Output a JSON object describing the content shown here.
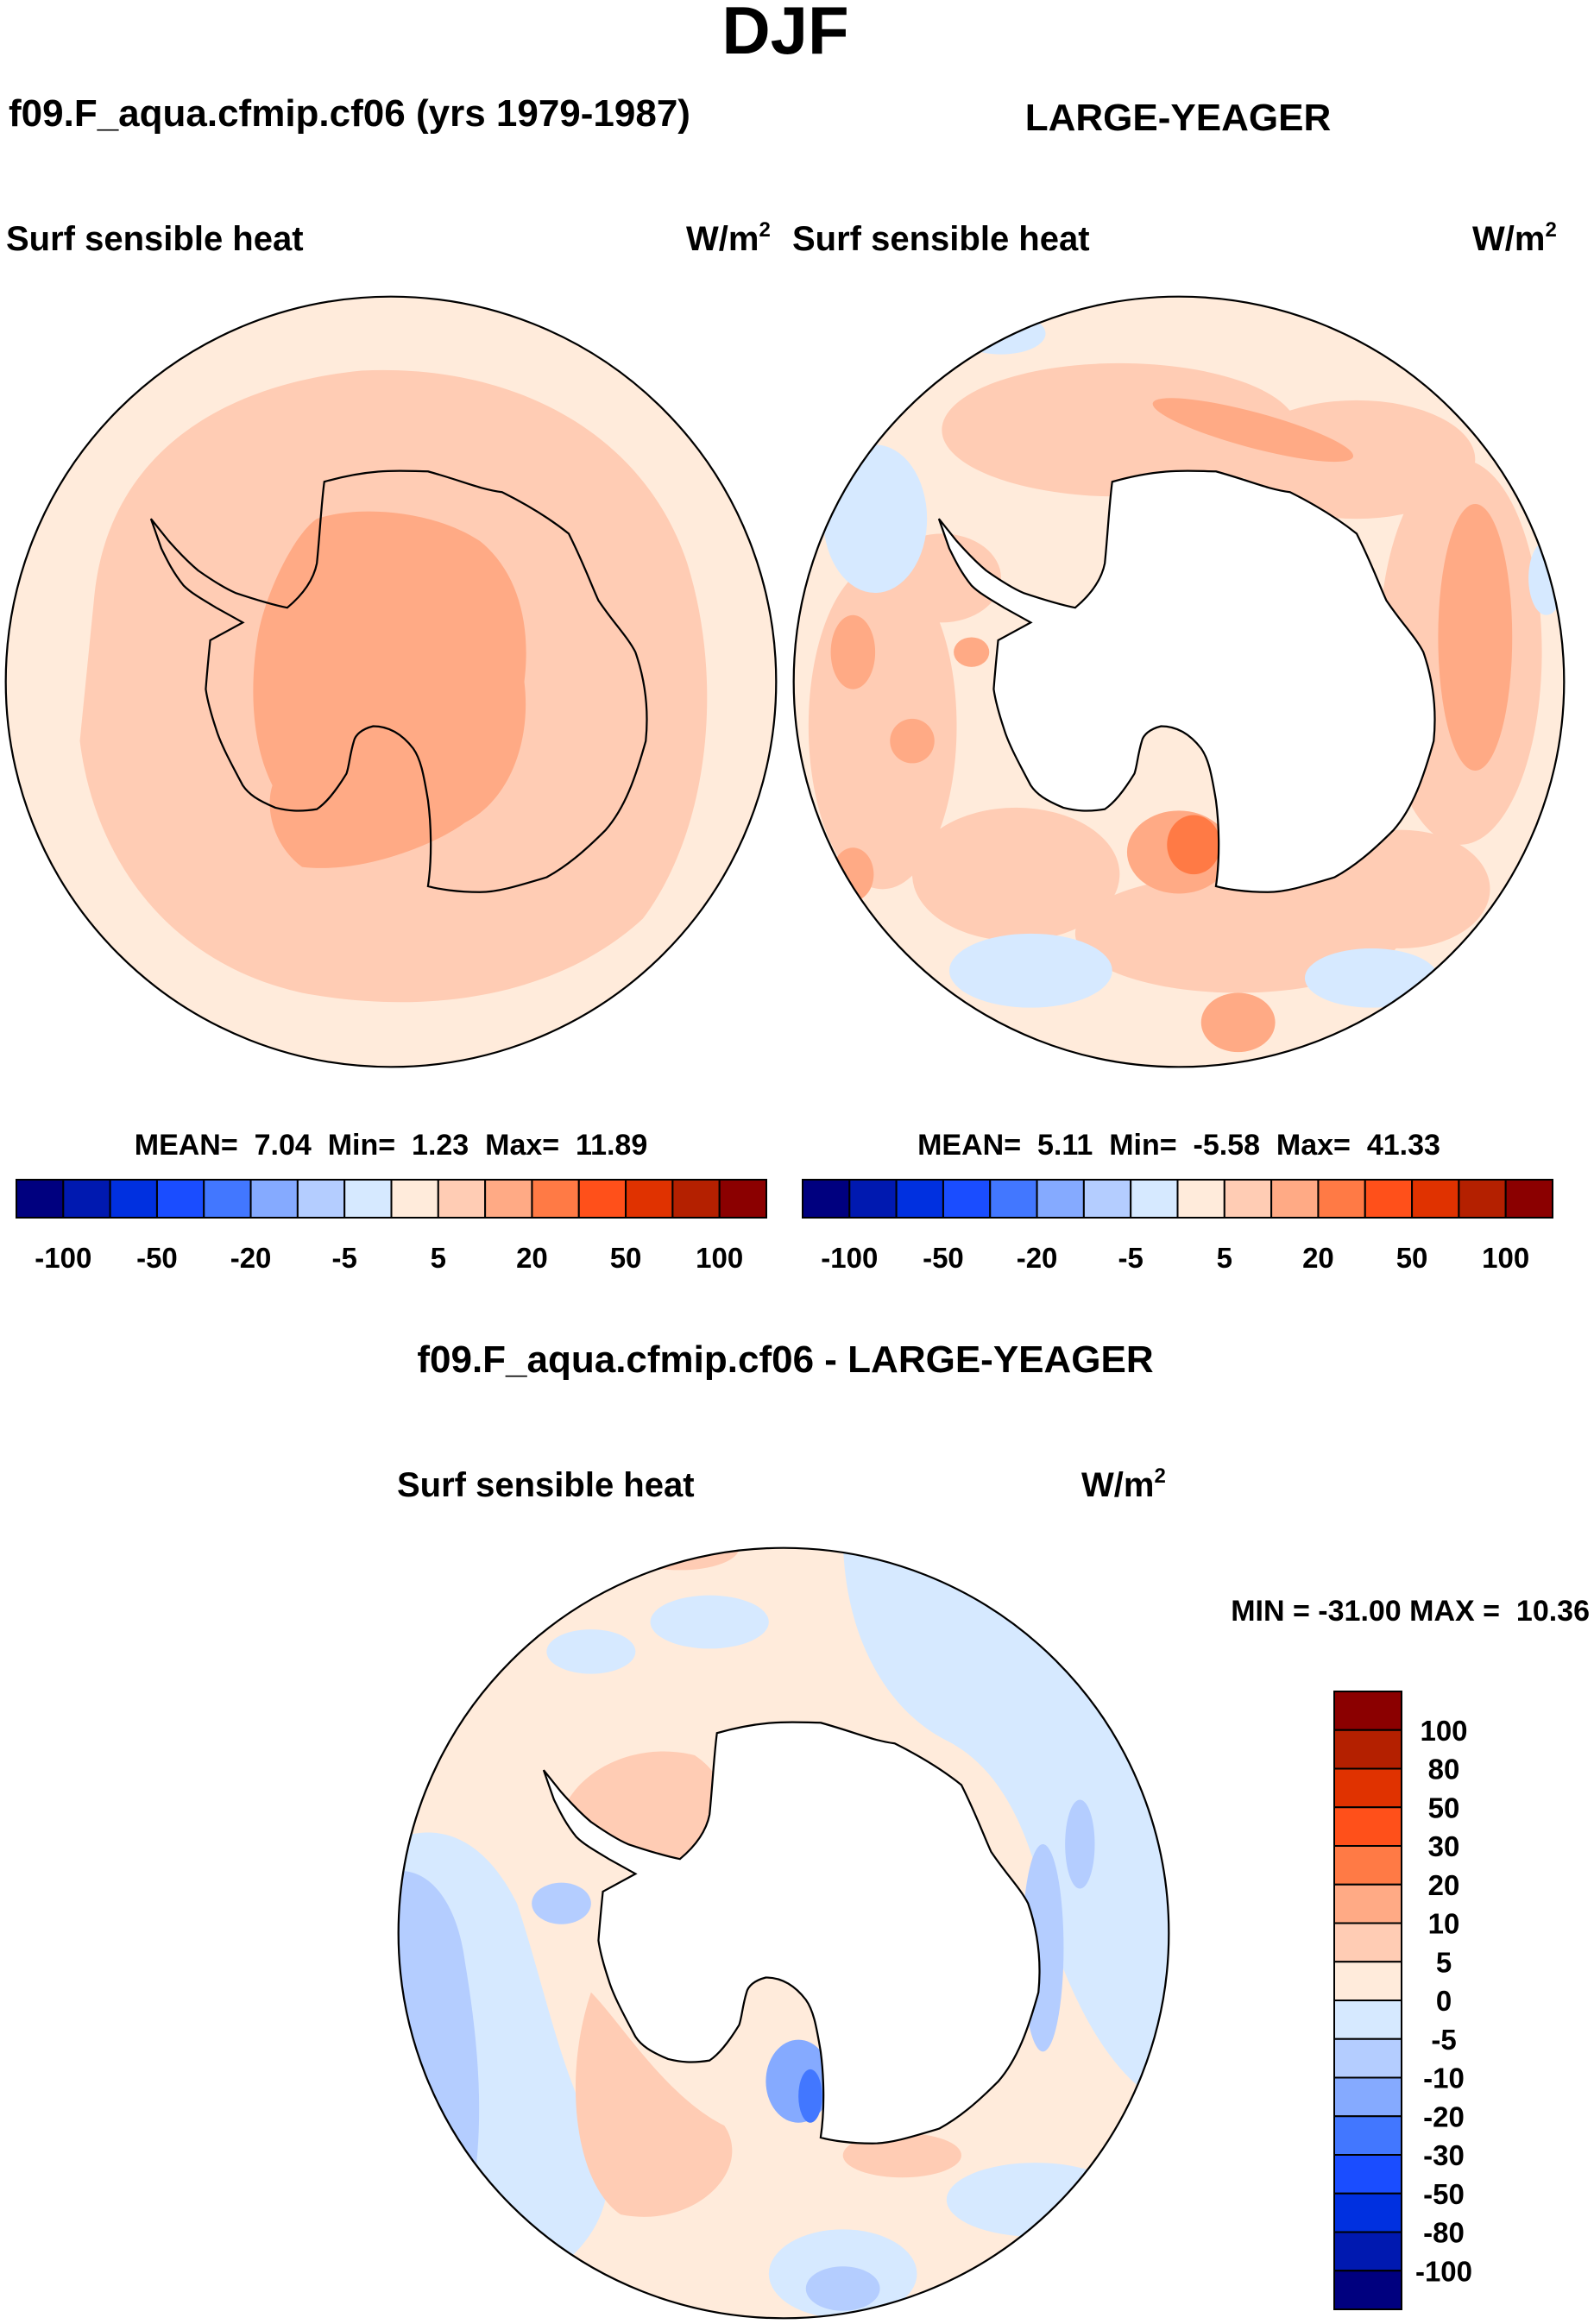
{
  "chart_data": [
    {
      "type": "heatmap",
      "projection": "south-polar-stereographic",
      "title": "DJF",
      "model_title": "f09.F_aqua.cfmip.cf06 (yrs 1979-1987)",
      "variable": "Surf sensible heat",
      "units": "W/m",
      "units_sup": "2",
      "stats": {
        "mean_label": "MEAN=",
        "mean": "7.04",
        "min_label": "Min=",
        "min": "1.23",
        "max_label": "Max=",
        "max": "11.89"
      },
      "colorbar_tick_labels": [
        "-100",
        "-50",
        "-20",
        "-5",
        "5",
        "20",
        "50",
        "100"
      ]
    },
    {
      "type": "heatmap",
      "projection": "south-polar-stereographic",
      "model_title": "LARGE-YEAGER",
      "variable": "Surf sensible heat",
      "units": "W/m",
      "units_sup": "2",
      "stats": {
        "mean_label": "MEAN=",
        "mean": "5.11",
        "min_label": "Min=",
        "min": "-5.58",
        "max_label": "Max=",
        "max": "41.33"
      },
      "colorbar_tick_labels": [
        "-100",
        "-50",
        "-20",
        "-5",
        "5",
        "20",
        "50",
        "100"
      ]
    },
    {
      "type": "heatmap",
      "projection": "south-polar-stereographic",
      "title": "f09.F_aqua.cfmip.cf06 - LARGE-YEAGER",
      "variable": "Surf sensible heat",
      "units": "W/m",
      "units_sup": "2",
      "minmax_text": "MIN = -31.00 MAX =  10.36",
      "colorbar_tick_labels": [
        "100",
        "80",
        "50",
        "30",
        "20",
        "10",
        "5",
        "0",
        "-5",
        "-10",
        "-20",
        "-30",
        "-50",
        "-80",
        "-100"
      ]
    }
  ],
  "levels": [
    -100,
    -80,
    -50,
    -30,
    -20,
    -10,
    -5,
    0,
    5,
    10,
    20,
    30,
    50,
    80,
    100
  ],
  "palette": [
    "#00007f",
    "#0019b0",
    "#0030e0",
    "#1a4dff",
    "#4277ff",
    "#85aaff",
    "#b4cdff",
    "#d6e9ff",
    "#ffebdb",
    "#ffccb4",
    "#ffaa85",
    "#ff7a45",
    "#ff501a",
    "#e03200",
    "#b42000",
    "#8b0000"
  ]
}
